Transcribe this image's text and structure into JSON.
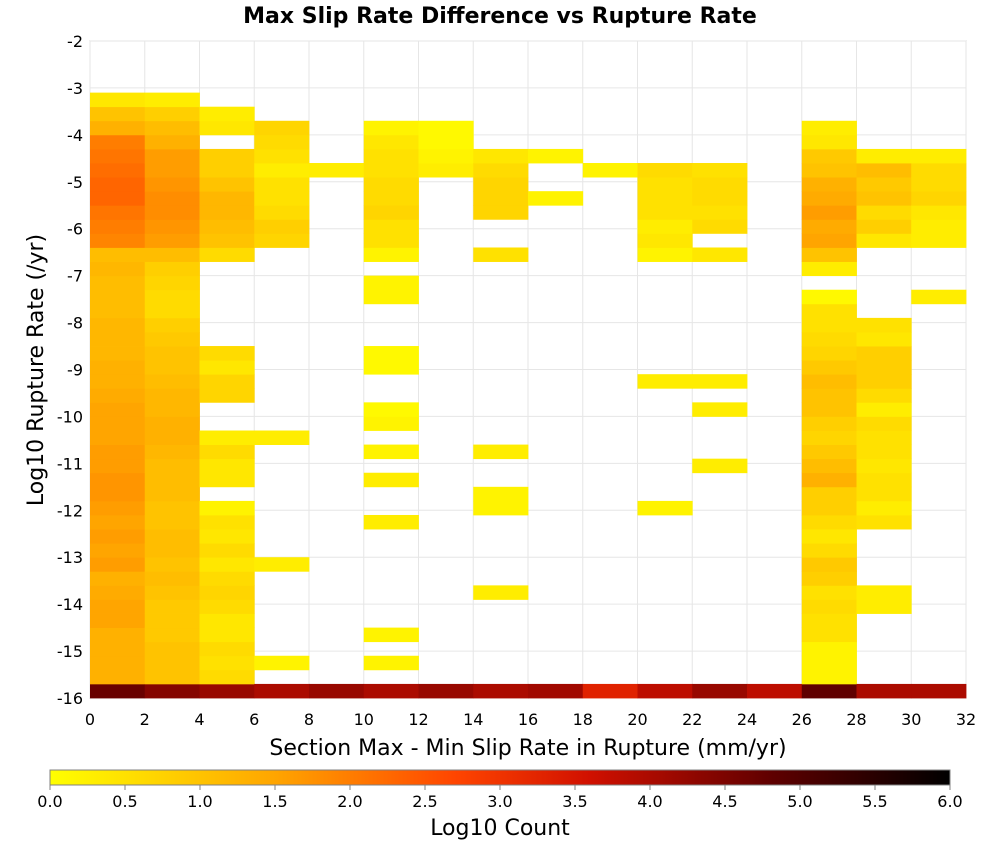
{
  "chart_data": {
    "type": "heatmap",
    "title": "Max Slip Rate Difference vs Rupture Rate",
    "xlabel": "Section Max - Min Slip Rate in Rupture (mm/yr)",
    "ylabel": "Log10 Rupture Rate (/yr)",
    "xlim": [
      0,
      32
    ],
    "ylim": [
      -16,
      -2
    ],
    "x_ticks": [
      "0",
      "2",
      "4",
      "6",
      "8",
      "10",
      "12",
      "14",
      "16",
      "18",
      "20",
      "22",
      "24",
      "26",
      "28",
      "30",
      "32"
    ],
    "y_ticks": [
      "-2",
      "-3",
      "-4",
      "-5",
      "-6",
      "-7",
      "-8",
      "-9",
      "-10",
      "-11",
      "-12",
      "-13",
      "-14",
      "-15",
      "-16"
    ],
    "x_bin_width": 2,
    "y_bin_height": 0.3,
    "colorbar": {
      "label": "Log10 Count",
      "min": 0.0,
      "max": 6.0,
      "ticks": [
        "0.0",
        "0.5",
        "1.0",
        "1.5",
        "2.0",
        "2.5",
        "3.0",
        "3.5",
        "4.0",
        "4.5",
        "5.0",
        "5.5",
        "6.0"
      ],
      "colors": [
        "#ffff00",
        "#ffa500",
        "#ff4500",
        "#c00000",
        "#000000"
      ]
    },
    "grid": true,
    "columns": [
      {
        "x_start": 0,
        "y_start": -16.0,
        "values": [
          4.7,
          1.3,
          1.3,
          1.3,
          1.3,
          1.5,
          1.5,
          1.4,
          1.3,
          1.6,
          1.5,
          1.6,
          1.5,
          1.6,
          1.7,
          1.7,
          1.6,
          1.6,
          1.5,
          1.5,
          1.5,
          1.4,
          1.3,
          1.3,
          1.2,
          1.2,
          1.2,
          1.1,
          1.1,
          1.1,
          1.2,
          1.1,
          1.9,
          2.0,
          2.1,
          2.3,
          2.3,
          2.2,
          2.1,
          2.0,
          1.3,
          1.0,
          0.4
        ]
      },
      {
        "x_start": 2,
        "y_start": -16.0,
        "values": [
          4.4,
          1.0,
          1.0,
          1.0,
          0.9,
          0.9,
          0.9,
          1.0,
          1.1,
          1.0,
          1.1,
          1.1,
          1.0,
          1.0,
          1.1,
          1.1,
          1.1,
          1.2,
          1.3,
          1.3,
          1.2,
          1.2,
          1.1,
          1.0,
          1.0,
          0.9,
          0.8,
          0.6,
          0.6,
          0.7,
          0.8,
          1.1,
          1.6,
          1.7,
          1.8,
          1.8,
          1.7,
          1.6,
          1.6,
          1.3,
          1.1,
          0.8,
          0.3
        ]
      },
      {
        "x_start": 4,
        "y_start": -16.0,
        "values": [
          4.2,
          0.6,
          0.5,
          0.6,
          0.4,
          0.4,
          0.6,
          0.7,
          0.6,
          0.4,
          0.6,
          0.4,
          0.5,
          0.2,
          null,
          0.4,
          0.4,
          0.6,
          0.3,
          null,
          null,
          0.7,
          0.7,
          0.4,
          0.6,
          null,
          null,
          null,
          null,
          null,
          null,
          0.6,
          1.0,
          1.1,
          1.2,
          1.2,
          1.0,
          0.8,
          0.8,
          null,
          0.4,
          0.3,
          null
        ]
      },
      {
        "x_start": 6,
        "y_start": -16.0,
        "values": [
          4.0,
          null,
          0.2,
          null,
          null,
          null,
          null,
          null,
          null,
          0.3,
          null,
          null,
          null,
          null,
          null,
          null,
          null,
          null,
          0.3,
          null,
          null,
          null,
          null,
          null,
          null,
          null,
          null,
          null,
          null,
          null,
          null,
          null,
          0.7,
          0.8,
          0.6,
          0.5,
          0.5,
          0.3,
          0.5,
          0.6,
          0.7,
          null,
          null
        ]
      },
      {
        "x_start": 8,
        "y_start": -16.0,
        "values": [
          4.2,
          null,
          null,
          null,
          null,
          null,
          null,
          null,
          null,
          null,
          null,
          null,
          null,
          null,
          null,
          null,
          null,
          null,
          null,
          null,
          null,
          null,
          null,
          null,
          null,
          null,
          null,
          null,
          null,
          null,
          null,
          null,
          null,
          null,
          null,
          null,
          null,
          0.3,
          null,
          null,
          null,
          null,
          null
        ]
      },
      {
        "x_start": 10,
        "y_start": -16.0,
        "values": [
          4.0,
          null,
          0.2,
          null,
          0.2,
          null,
          null,
          null,
          null,
          null,
          null,
          null,
          0.3,
          null,
          null,
          0.3,
          null,
          0.2,
          null,
          0.2,
          0.1,
          null,
          null,
          0.1,
          0.1,
          null,
          null,
          null,
          0.2,
          0.2,
          null,
          0.2,
          0.5,
          0.5,
          0.7,
          0.6,
          0.6,
          0.5,
          0.5,
          0.4,
          0.2,
          null,
          null
        ]
      },
      {
        "x_start": 12,
        "y_start": -16.0,
        "values": [
          4.2,
          null,
          null,
          null,
          null,
          null,
          null,
          null,
          null,
          null,
          null,
          null,
          null,
          null,
          null,
          null,
          null,
          null,
          null,
          null,
          null,
          null,
          null,
          null,
          null,
          null,
          null,
          null,
          null,
          null,
          null,
          null,
          null,
          null,
          null,
          null,
          null,
          0.3,
          0.2,
          0.1,
          0.1,
          null,
          null
        ]
      },
      {
        "x_start": 14,
        "y_start": -16.0,
        "values": [
          4.0,
          null,
          null,
          null,
          null,
          null,
          null,
          0.3,
          null,
          null,
          null,
          null,
          null,
          0.2,
          0.2,
          null,
          null,
          0.3,
          null,
          null,
          null,
          null,
          null,
          null,
          null,
          null,
          null,
          null,
          null,
          null,
          null,
          0.5,
          null,
          null,
          0.7,
          0.7,
          0.7,
          0.6,
          0.4,
          null,
          null,
          null,
          null
        ]
      },
      {
        "x_start": 16,
        "y_start": -16.0,
        "values": [
          4.1,
          null,
          null,
          null,
          null,
          null,
          null,
          null,
          null,
          null,
          null,
          null,
          null,
          null,
          null,
          null,
          null,
          null,
          null,
          null,
          null,
          null,
          null,
          null,
          null,
          null,
          null,
          null,
          null,
          null,
          null,
          null,
          null,
          null,
          null,
          0.2,
          null,
          null,
          0.2,
          null,
          null,
          null,
          null
        ]
      },
      {
        "x_start": 18,
        "y_start": -16.0,
        "values": [
          3.3,
          null,
          null,
          null,
          null,
          null,
          null,
          null,
          null,
          null,
          null,
          null,
          null,
          null,
          null,
          null,
          null,
          null,
          null,
          null,
          null,
          null,
          null,
          null,
          null,
          null,
          null,
          null,
          null,
          null,
          null,
          null,
          null,
          null,
          null,
          null,
          null,
          0.2,
          null,
          null,
          null,
          null,
          null
        ]
      },
      {
        "x_start": 20,
        "y_start": -16.0,
        "values": [
          3.8,
          null,
          null,
          null,
          null,
          null,
          null,
          null,
          null,
          null,
          null,
          null,
          null,
          0.2,
          null,
          null,
          null,
          null,
          null,
          null,
          null,
          null,
          0.3,
          null,
          null,
          null,
          null,
          null,
          null,
          null,
          null,
          0.2,
          0.4,
          0.3,
          0.5,
          0.5,
          0.5,
          0.6,
          null,
          null,
          null,
          null,
          null
        ]
      },
      {
        "x_start": 22,
        "y_start": -16.0,
        "values": [
          4.2,
          null,
          null,
          null,
          null,
          null,
          null,
          null,
          null,
          null,
          null,
          null,
          null,
          null,
          null,
          null,
          0.3,
          null,
          null,
          null,
          0.3,
          null,
          0.3,
          null,
          null,
          null,
          null,
          null,
          null,
          null,
          null,
          0.4,
          null,
          0.6,
          0.5,
          0.6,
          0.6,
          0.5,
          null,
          null,
          null,
          null,
          null
        ]
      },
      {
        "x_start": 24,
        "y_start": -16.0,
        "values": [
          3.8,
          null,
          null,
          null,
          null,
          null,
          null,
          null,
          null,
          null,
          null,
          null,
          null,
          null,
          null,
          null,
          null,
          null,
          null,
          null,
          null,
          null,
          null,
          null,
          null,
          null,
          null,
          null,
          null,
          null,
          null,
          null,
          null,
          null,
          null,
          null,
          null,
          null,
          null,
          null,
          null,
          null,
          null
        ]
      },
      {
        "x_start": 26,
        "y_start": -16.0,
        "values": [
          4.8,
          0.2,
          0.2,
          0.2,
          0.5,
          0.5,
          0.6,
          0.5,
          0.8,
          0.9,
          0.6,
          0.4,
          0.6,
          0.8,
          0.8,
          1.3,
          1.1,
          0.9,
          0.7,
          0.8,
          1.0,
          1.0,
          1.1,
          0.9,
          0.7,
          0.6,
          0.5,
          0.5,
          0.1,
          null,
          0.3,
          1.0,
          1.5,
          1.4,
          1.6,
          1.4,
          1.3,
          1.0,
          0.9,
          0.4,
          0.3,
          null,
          null
        ]
      },
      {
        "x_start": 28,
        "y_start": -16.0,
        "values": [
          4.0,
          null,
          null,
          null,
          null,
          null,
          0.3,
          0.3,
          null,
          null,
          null,
          null,
          0.5,
          0.3,
          0.5,
          0.5,
          0.4,
          0.5,
          0.5,
          0.6,
          0.3,
          0.6,
          0.8,
          0.8,
          0.8,
          0.4,
          0.5,
          null,
          null,
          null,
          null,
          null,
          0.4,
          0.8,
          0.6,
          1.0,
          0.9,
          1.1,
          0.3,
          null,
          null,
          null,
          null
        ]
      },
      {
        "x_start": 30,
        "y_start": -16.0,
        "values": [
          4.0,
          null,
          null,
          null,
          null,
          null,
          null,
          null,
          null,
          null,
          null,
          null,
          null,
          null,
          null,
          null,
          null,
          null,
          null,
          null,
          null,
          null,
          null,
          null,
          null,
          null,
          null,
          null,
          0.3,
          null,
          null,
          null,
          0.3,
          0.3,
          0.4,
          0.7,
          0.6,
          0.6,
          0.3,
          null,
          null,
          null,
          null
        ]
      }
    ]
  }
}
